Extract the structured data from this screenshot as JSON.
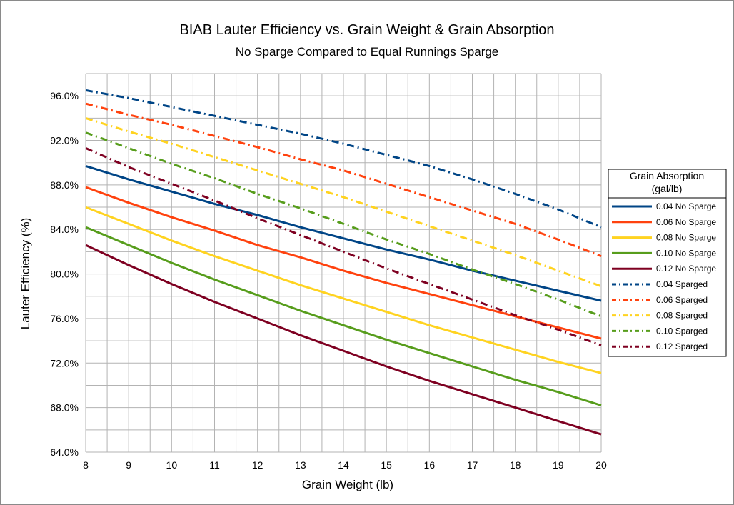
{
  "chart_data": {
    "type": "line",
    "title": "BIAB Lauter Efficiency vs. Grain Weight & Grain Absorption",
    "subtitle": "No Sparge Compared to Equal Runnings Sparge",
    "xlabel": "Grain Weight (lb)",
    "ylabel": "Lauter Efficiency (%)",
    "xlim": [
      8,
      20
    ],
    "ylim": [
      64,
      98
    ],
    "x_ticks": [
      8,
      9,
      10,
      11,
      12,
      13,
      14,
      15,
      16,
      17,
      18,
      19,
      20
    ],
    "y_ticks": [
      64,
      68,
      72,
      76,
      80,
      84,
      88,
      92,
      96
    ],
    "y_tick_labels": [
      "64.0%",
      "68.0%",
      "72.0%",
      "76.0%",
      "80.0%",
      "84.0%",
      "88.0%",
      "92.0%",
      "96.0%"
    ],
    "grid": true,
    "legend": {
      "title_lines": [
        "Grain Absorption",
        "(gal/lb)"
      ],
      "placement": "right"
    },
    "x": [
      8,
      9,
      10,
      11,
      12,
      13,
      14,
      15,
      16,
      17,
      18,
      19,
      20
    ],
    "series": [
      {
        "name": "0.04 No Sparge",
        "color": "#004586",
        "dash": "solid",
        "values": [
          89.7,
          88.5,
          87.4,
          86.3,
          85.3,
          84.2,
          83.2,
          82.2,
          81.3,
          80.3,
          79.4,
          78.5,
          77.6
        ]
      },
      {
        "name": "0.06 No Sparge",
        "color": "#ff420e",
        "dash": "solid",
        "values": [
          87.8,
          86.4,
          85.1,
          83.9,
          82.6,
          81.5,
          80.3,
          79.2,
          78.2,
          77.2,
          76.2,
          75.2,
          74.2
        ]
      },
      {
        "name": "0.08 No Sparge",
        "color": "#ffd320",
        "dash": "solid",
        "values": [
          86.0,
          84.5,
          83.0,
          81.6,
          80.3,
          79.0,
          77.8,
          76.6,
          75.4,
          74.3,
          73.2,
          72.1,
          71.1
        ]
      },
      {
        "name": "0.10 No Sparge",
        "color": "#579d1c",
        "dash": "solid",
        "values": [
          84.2,
          82.6,
          81.0,
          79.5,
          78.1,
          76.7,
          75.4,
          74.1,
          72.9,
          71.7,
          70.5,
          69.4,
          68.2
        ]
      },
      {
        "name": "0.12 No Sparge",
        "color": "#7e0021",
        "dash": "solid",
        "values": [
          82.6,
          80.8,
          79.1,
          77.5,
          76.0,
          74.5,
          73.1,
          71.7,
          70.4,
          69.2,
          68.0,
          66.8,
          65.6
        ]
      },
      {
        "name": "0.04 Sparged",
        "color": "#004586",
        "dash": "dashdot",
        "values": [
          96.5,
          95.8,
          95.0,
          94.2,
          93.4,
          92.6,
          91.7,
          90.7,
          89.7,
          88.5,
          87.2,
          85.8,
          84.2
        ]
      },
      {
        "name": "0.06 Sparged",
        "color": "#ff420e",
        "dash": "dashdot",
        "values": [
          95.3,
          94.3,
          93.4,
          92.4,
          91.4,
          90.3,
          89.3,
          88.1,
          86.9,
          85.7,
          84.5,
          83.1,
          81.6
        ]
      },
      {
        "name": "0.08 Sparged",
        "color": "#ffd320",
        "dash": "dashdot",
        "values": [
          94.0,
          92.8,
          91.7,
          90.5,
          89.3,
          88.1,
          86.9,
          85.6,
          84.3,
          83.0,
          81.7,
          80.3,
          78.9
        ]
      },
      {
        "name": "0.10 Sparged",
        "color": "#579d1c",
        "dash": "dashdot",
        "values": [
          92.7,
          91.3,
          89.9,
          88.6,
          87.2,
          85.9,
          84.5,
          83.1,
          81.8,
          80.4,
          79.1,
          77.7,
          76.2
        ]
      },
      {
        "name": "0.12 Sparged",
        "color": "#7e0021",
        "dash": "dashdot",
        "values": [
          91.3,
          89.6,
          88.1,
          86.6,
          85.0,
          83.5,
          82.0,
          80.5,
          79.1,
          77.7,
          76.3,
          75.0,
          73.6
        ]
      }
    ]
  }
}
